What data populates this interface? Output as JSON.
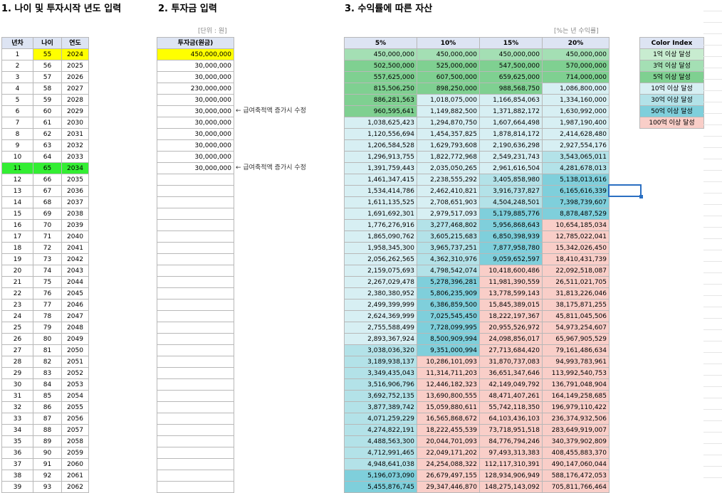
{
  "headings": {
    "age": "1. 나이 및 투자시작 년도 입력",
    "invest": "2. 투자금 입력",
    "assets": "3. 수익률에 따른 자산"
  },
  "notes": {
    "unit": "[단위 : 원]",
    "rate_note": "[%는 년 수익률]"
  },
  "age_table": {
    "headers": [
      "년차",
      "나이",
      "연도"
    ],
    "rows": [
      [
        "1",
        "55",
        "2024"
      ],
      [
        "2",
        "56",
        "2025"
      ],
      [
        "3",
        "57",
        "2026"
      ],
      [
        "4",
        "58",
        "2027"
      ],
      [
        "5",
        "59",
        "2028"
      ],
      [
        "6",
        "60",
        "2029"
      ],
      [
        "7",
        "61",
        "2030"
      ],
      [
        "8",
        "62",
        "2031"
      ],
      [
        "9",
        "63",
        "2032"
      ],
      [
        "10",
        "64",
        "2033"
      ],
      [
        "11",
        "65",
        "2034"
      ],
      [
        "12",
        "66",
        "2035"
      ],
      [
        "13",
        "67",
        "2036"
      ],
      [
        "14",
        "68",
        "2037"
      ],
      [
        "15",
        "69",
        "2038"
      ],
      [
        "16",
        "70",
        "2039"
      ],
      [
        "17",
        "71",
        "2040"
      ],
      [
        "18",
        "72",
        "2041"
      ],
      [
        "19",
        "73",
        "2042"
      ],
      [
        "20",
        "74",
        "2043"
      ],
      [
        "21",
        "75",
        "2044"
      ],
      [
        "22",
        "76",
        "2045"
      ],
      [
        "23",
        "77",
        "2046"
      ],
      [
        "24",
        "78",
        "2047"
      ],
      [
        "25",
        "79",
        "2048"
      ],
      [
        "26",
        "80",
        "2049"
      ],
      [
        "27",
        "81",
        "2050"
      ],
      [
        "28",
        "82",
        "2051"
      ],
      [
        "29",
        "83",
        "2052"
      ],
      [
        "30",
        "84",
        "2053"
      ],
      [
        "31",
        "85",
        "2054"
      ],
      [
        "32",
        "86",
        "2055"
      ],
      [
        "33",
        "87",
        "2056"
      ],
      [
        "34",
        "88",
        "2057"
      ],
      [
        "35",
        "89",
        "2058"
      ],
      [
        "36",
        "90",
        "2059"
      ],
      [
        "37",
        "91",
        "2060"
      ],
      [
        "38",
        "92",
        "2061"
      ],
      [
        "39",
        "93",
        "2062"
      ]
    ]
  },
  "invest_table": {
    "header": "투자금(원금)",
    "values": [
      "450,000,000",
      "30,000,000",
      "30,000,000",
      "230,000,000",
      "30,000,000",
      "30,000,000",
      "30,000,000",
      "30,000,000",
      "30,000,000",
      "30,000,000",
      "30,000,000"
    ],
    "annotation": "← 급여축적액 증가시 수정"
  },
  "returns_table": {
    "headers": [
      "5%",
      "10%",
      "15%",
      "20%"
    ],
    "rows": [
      [
        "450,000,000",
        "450,000,000",
        "450,000,000",
        "450,000,000"
      ],
      [
        "502,500,000",
        "525,000,000",
        "547,500,000",
        "570,000,000"
      ],
      [
        "557,625,000",
        "607,500,000",
        "659,625,000",
        "714,000,000"
      ],
      [
        "815,506,250",
        "898,250,000",
        "988,568,750",
        "1,086,800,000"
      ],
      [
        "886,281,563",
        "1,018,075,000",
        "1,166,854,063",
        "1,334,160,000"
      ],
      [
        "960,595,641",
        "1,149,882,500",
        "1,371,882,172",
        "1,630,992,000"
      ],
      [
        "1,038,625,423",
        "1,294,870,750",
        "1,607,664,498",
        "1,987,190,400"
      ],
      [
        "1,120,556,694",
        "1,454,357,825",
        "1,878,814,172",
        "2,414,628,480"
      ],
      [
        "1,206,584,528",
        "1,629,793,608",
        "2,190,636,298",
        "2,927,554,176"
      ],
      [
        "1,296,913,755",
        "1,822,772,968",
        "2,549,231,743",
        "3,543,065,011"
      ],
      [
        "1,391,759,443",
        "2,035,050,265",
        "2,961,616,504",
        "4,281,678,013"
      ],
      [
        "1,461,347,415",
        "2,238,555,292",
        "3,405,858,980",
        "5,138,013,616"
      ],
      [
        "1,534,414,786",
        "2,462,410,821",
        "3,916,737,827",
        "6,165,616,339"
      ],
      [
        "1,611,135,525",
        "2,708,651,903",
        "4,504,248,501",
        "7,398,739,607"
      ],
      [
        "1,691,692,301",
        "2,979,517,093",
        "5,179,885,776",
        "8,878,487,529"
      ],
      [
        "1,776,276,916",
        "3,277,468,802",
        "5,956,868,643",
        "10,654,185,034"
      ],
      [
        "1,865,090,762",
        "3,605,215,683",
        "6,850,398,939",
        "12,785,022,041"
      ],
      [
        "1,958,345,300",
        "3,965,737,251",
        "7,877,958,780",
        "15,342,026,450"
      ],
      [
        "2,056,262,565",
        "4,362,310,976",
        "9,059,652,597",
        "18,410,431,739"
      ],
      [
        "2,159,075,693",
        "4,798,542,074",
        "10,418,600,486",
        "22,092,518,087"
      ],
      [
        "2,267,029,478",
        "5,278,396,281",
        "11,981,390,559",
        "26,511,021,705"
      ],
      [
        "2,380,380,952",
        "5,806,235,909",
        "13,778,599,143",
        "31,813,226,046"
      ],
      [
        "2,499,399,999",
        "6,386,859,500",
        "15,845,389,015",
        "38,175,871,255"
      ],
      [
        "2,624,369,999",
        "7,025,545,450",
        "18,222,197,367",
        "45,811,045,506"
      ],
      [
        "2,755,588,499",
        "7,728,099,995",
        "20,955,526,972",
        "54,973,254,607"
      ],
      [
        "2,893,367,924",
        "8,500,909,994",
        "24,098,856,017",
        "65,967,905,529"
      ],
      [
        "3,038,036,320",
        "9,351,000,994",
        "27,713,684,420",
        "79,161,486,634"
      ],
      [
        "3,189,938,137",
        "10,286,101,093",
        "31,870,737,083",
        "94,993,783,961"
      ],
      [
        "3,349,435,043",
        "11,314,711,203",
        "36,651,347,646",
        "113,992,540,753"
      ],
      [
        "3,516,906,796",
        "12,446,182,323",
        "42,149,049,792",
        "136,791,048,904"
      ],
      [
        "3,692,752,135",
        "13,690,800,555",
        "48,471,407,261",
        "164,149,258,685"
      ],
      [
        "3,877,389,742",
        "15,059,880,611",
        "55,742,118,350",
        "196,979,110,422"
      ],
      [
        "4,071,259,229",
        "16,565,868,672",
        "64,103,436,103",
        "236,374,932,506"
      ],
      [
        "4,274,822,191",
        "18,222,455,539",
        "73,718,951,518",
        "283,649,919,007"
      ],
      [
        "4,488,563,300",
        "20,044,701,093",
        "84,776,794,246",
        "340,379,902,809"
      ],
      [
        "4,712,991,465",
        "22,049,171,202",
        "97,493,313,383",
        "408,455,883,370"
      ],
      [
        "4,948,641,038",
        "24,254,088,322",
        "112,117,310,391",
        "490,147,060,044"
      ],
      [
        "5,196,073,090",
        "26,679,497,155",
        "128,934,906,949",
        "588,176,472,053"
      ],
      [
        "5,455,876,745",
        "29,347,446,870",
        "148,275,143,092",
        "705,811,766,464"
      ]
    ]
  },
  "color_index": {
    "header": "Color Index",
    "items": [
      "1억 이상 달성",
      "3억 이상 달성",
      "5억 이상 달성",
      "10억 이상 달성",
      "30억 이상 달성",
      "50억 이상 달성",
      "100억 이상 달성"
    ]
  },
  "colors": {
    "input_yellow": "#ffff00",
    "retire_green": "#33ee33",
    "header_blue": "#dde4f3",
    "level_1": "#c8ecd0",
    "level_2": "#a4dfb4",
    "level_3": "#7fd091",
    "level_4": "#d7eff3",
    "level_5": "#b3e2e8",
    "level_6": "#7fcfdb",
    "level_7": "#f9cec8",
    "selection": "#2a6fc2"
  }
}
